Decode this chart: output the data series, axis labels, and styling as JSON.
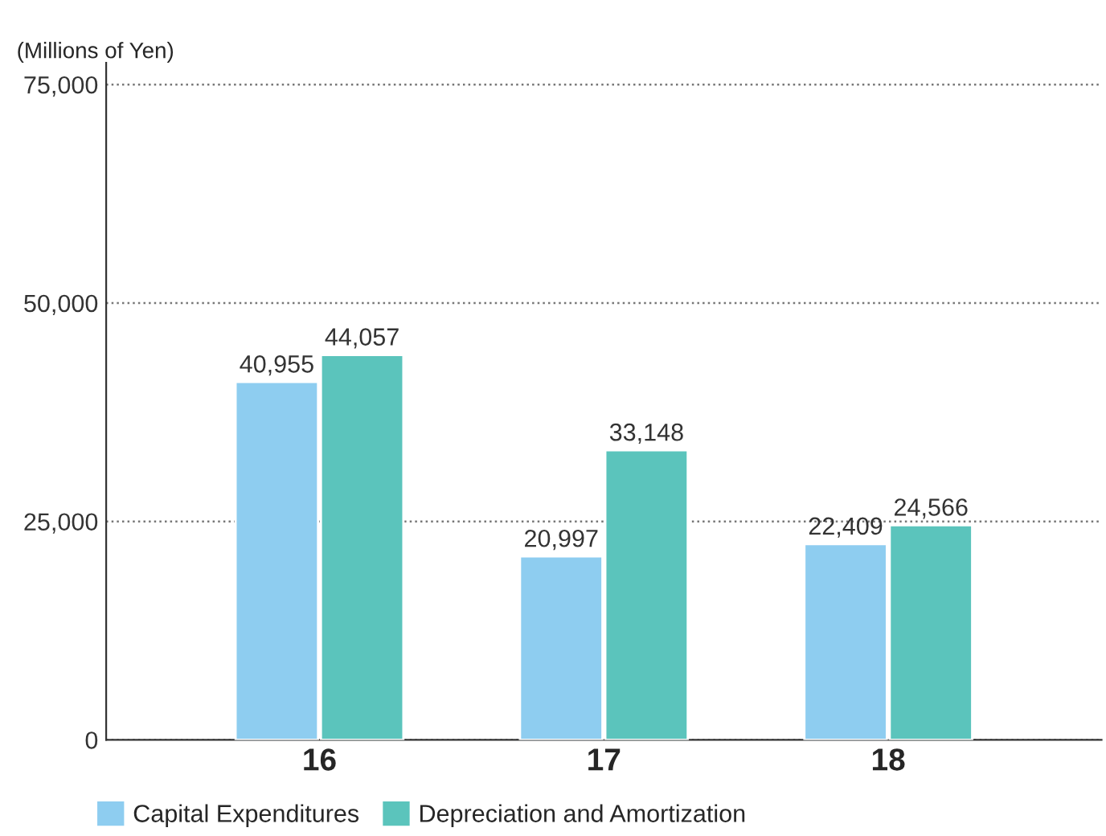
{
  "chart_data": {
    "type": "bar",
    "ylabel": "(Millions of Yen)",
    "categories": [
      "16",
      "17",
      "18"
    ],
    "series": [
      {
        "name": "Capital Expenditures",
        "color": "#8ecdf0",
        "values": [
          40955,
          20997,
          22409
        ],
        "value_labels": [
          "40,955",
          "20,997",
          "22,409"
        ]
      },
      {
        "name": "Depreciation and Amortization",
        "color": "#5bc4bc",
        "values": [
          44057,
          33148,
          24566
        ],
        "value_labels": [
          "44,057",
          "33,148",
          "24,566"
        ]
      }
    ],
    "ylim": [
      0,
      77500
    ],
    "yticks": [
      {
        "value": 0,
        "label": "0"
      },
      {
        "value": 25000,
        "label": "25,000"
      },
      {
        "value": 50000,
        "label": "50,000"
      },
      {
        "value": 75000,
        "label": "75,000"
      }
    ],
    "grid": "y",
    "legend": "bottom left"
  }
}
